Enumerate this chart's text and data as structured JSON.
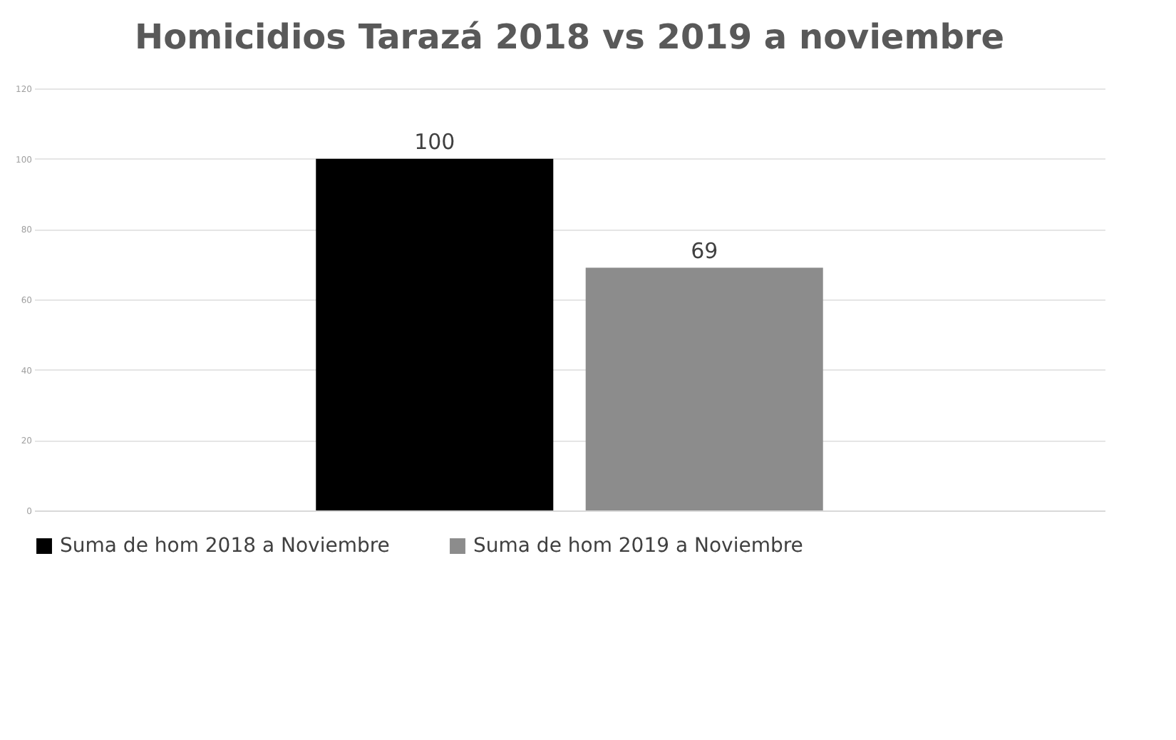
{
  "chart_data": {
    "type": "bar",
    "title": "Homicidios Tarazá 2018 vs 2019 a noviembre",
    "categories": [
      null
    ],
    "series": [
      {
        "name": "Suma de hom 2018 a Noviembre",
        "color": "#000000",
        "values": [
          100
        ]
      },
      {
        "name": "Suma de hom 2019 a Noviembre",
        "color": "#8c8c8c",
        "values": [
          69
        ]
      }
    ],
    "ylim": [
      0,
      120
    ],
    "yticks": [
      0,
      20,
      40,
      60,
      80,
      100,
      120
    ],
    "grid": "y",
    "legend": "bottom",
    "data_labels": true,
    "tick_labels": "y"
  }
}
